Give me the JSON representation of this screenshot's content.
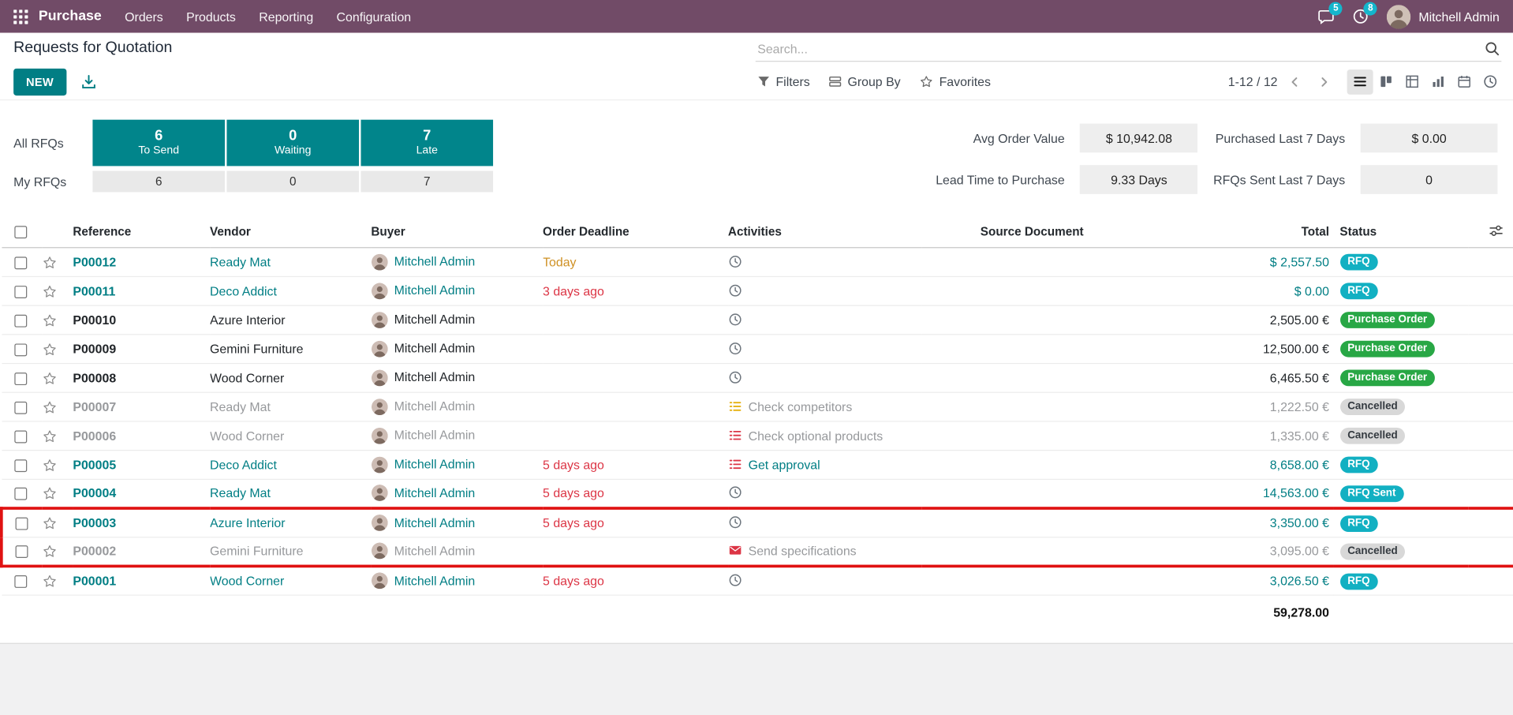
{
  "colors": {
    "brand": "#714B67",
    "accent": "#017E84",
    "tile": "#01858B",
    "badge_info": "#12b0c2",
    "badge_success": "#28a745",
    "cancel_bg": "#d8d8d8",
    "cancel_fg": "#343a40",
    "danger": "#dc3545",
    "warning": "#cf9124",
    "icon_warning": "#e5b00e",
    "nav_badge": "#14b6cc",
    "annotation": "#e01212",
    "muted": "#97999c"
  },
  "navbar": {
    "app_name": "Purchase",
    "menus": [
      "Orders",
      "Products",
      "Reporting",
      "Configuration"
    ],
    "messages_badge": "5",
    "activities_badge": "8",
    "user_name": "Mitchell Admin"
  },
  "control_panel": {
    "title": "Requests for Quotation",
    "search_placeholder": "Search...",
    "new_button": "NEW",
    "filters": "Filters",
    "group_by": "Group By",
    "favorites": "Favorites",
    "pager": "1-12 / 12",
    "view_switcher": {
      "active": "list",
      "views": [
        "list",
        "kanban",
        "pivot",
        "graph",
        "calendar",
        "activity"
      ]
    }
  },
  "dashboard": {
    "all_label": "All RFQs",
    "my_label": "My RFQs",
    "all_tiles": [
      {
        "value": "6",
        "label": "To Send"
      },
      {
        "value": "0",
        "label": "Waiting"
      },
      {
        "value": "7",
        "label": "Late"
      }
    ],
    "my_tiles": [
      "6",
      "0",
      "7"
    ],
    "stats": [
      {
        "label": "Avg Order Value",
        "value": "$ 10,942.08"
      },
      {
        "label": "Purchased Last 7 Days",
        "value": "$ 0.00"
      },
      {
        "label": "Lead Time to Purchase",
        "value": "9.33 Days"
      },
      {
        "label": "RFQs Sent Last 7 Days",
        "value": "0"
      }
    ]
  },
  "table": {
    "columns": [
      "Reference",
      "Vendor",
      "Buyer",
      "Order Deadline",
      "Activities",
      "Source Document",
      "Total",
      "Status"
    ],
    "footer_total": "59,278.00",
    "rows": [
      {
        "reference": "P00012",
        "vendor": "Ready Mat",
        "buyer": "Mitchell Admin",
        "deadline": "Today",
        "deadline_state": "warning",
        "activity": {
          "icon": "clock",
          "state": "default",
          "label": ""
        },
        "source_document": "",
        "total": "$ 2,557.50",
        "status": "RFQ",
        "status_variant": "info",
        "variant": "accent",
        "highlight": ""
      },
      {
        "reference": "P00011",
        "vendor": "Deco Addict",
        "buyer": "Mitchell Admin",
        "deadline": "3 days ago",
        "deadline_state": "danger",
        "activity": {
          "icon": "clock",
          "state": "default",
          "label": ""
        },
        "source_document": "",
        "total": "$ 0.00",
        "status": "RFQ",
        "status_variant": "info",
        "variant": "accent",
        "highlight": ""
      },
      {
        "reference": "P00010",
        "vendor": "Azure Interior",
        "buyer": "Mitchell Admin",
        "deadline": "",
        "deadline_state": "",
        "activity": {
          "icon": "clock",
          "state": "default",
          "label": ""
        },
        "source_document": "",
        "total": "2,505.00 €",
        "status": "Purchase Order",
        "status_variant": "success",
        "variant": "normal",
        "highlight": ""
      },
      {
        "reference": "P00009",
        "vendor": "Gemini Furniture",
        "buyer": "Mitchell Admin",
        "deadline": "",
        "deadline_state": "",
        "activity": {
          "icon": "clock",
          "state": "default",
          "label": ""
        },
        "source_document": "",
        "total": "12,500.00 €",
        "status": "Purchase Order",
        "status_variant": "success",
        "variant": "normal",
        "highlight": ""
      },
      {
        "reference": "P00008",
        "vendor": "Wood Corner",
        "buyer": "Mitchell Admin",
        "deadline": "",
        "deadline_state": "",
        "activity": {
          "icon": "clock",
          "state": "default",
          "label": ""
        },
        "source_document": "",
        "total": "6,465.50 €",
        "status": "Purchase Order",
        "status_variant": "success",
        "variant": "normal",
        "highlight": ""
      },
      {
        "reference": "P00007",
        "vendor": "Ready Mat",
        "buyer": "Mitchell Admin",
        "deadline": "",
        "deadline_state": "",
        "activity": {
          "icon": "list",
          "state": "warning",
          "label": "Check competitors"
        },
        "source_document": "",
        "total": "1,222.50 €",
        "status": "Cancelled",
        "status_variant": "muted",
        "variant": "muted",
        "highlight": ""
      },
      {
        "reference": "P00006",
        "vendor": "Wood Corner",
        "buyer": "Mitchell Admin",
        "deadline": "",
        "deadline_state": "",
        "activity": {
          "icon": "list",
          "state": "danger",
          "label": "Check optional products"
        },
        "source_document": "",
        "total": "1,335.00 €",
        "status": "Cancelled",
        "status_variant": "muted",
        "variant": "muted",
        "highlight": ""
      },
      {
        "reference": "P00005",
        "vendor": "Deco Addict",
        "buyer": "Mitchell Admin",
        "deadline": "5 days ago",
        "deadline_state": "danger",
        "activity": {
          "icon": "list",
          "state": "danger",
          "label": "Get approval"
        },
        "source_document": "",
        "total": "8,658.00 €",
        "status": "RFQ",
        "status_variant": "info",
        "variant": "accent",
        "highlight": ""
      },
      {
        "reference": "P00004",
        "vendor": "Ready Mat",
        "buyer": "Mitchell Admin",
        "deadline": "5 days ago",
        "deadline_state": "danger",
        "activity": {
          "icon": "clock",
          "state": "default",
          "label": ""
        },
        "source_document": "",
        "total": "14,563.00 €",
        "status": "RFQ Sent",
        "status_variant": "info",
        "variant": "accent",
        "highlight": ""
      },
      {
        "reference": "P00003",
        "vendor": "Azure Interior",
        "buyer": "Mitchell Admin",
        "deadline": "5 days ago",
        "deadline_state": "danger",
        "activity": {
          "icon": "clock",
          "state": "default",
          "label": ""
        },
        "source_document": "",
        "total": "3,350.00 €",
        "status": "RFQ",
        "status_variant": "info",
        "variant": "accent",
        "highlight": "start"
      },
      {
        "reference": "P00002",
        "vendor": "Gemini Furniture",
        "buyer": "Mitchell Admin",
        "deadline": "",
        "deadline_state": "",
        "activity": {
          "icon": "envelope",
          "state": "danger",
          "label": "Send specifications"
        },
        "source_document": "",
        "total": "3,095.00 €",
        "status": "Cancelled",
        "status_variant": "muted",
        "variant": "muted",
        "highlight": "end"
      },
      {
        "reference": "P00001",
        "vendor": "Wood Corner",
        "buyer": "Mitchell Admin",
        "deadline": "5 days ago",
        "deadline_state": "danger",
        "activity": {
          "icon": "clock",
          "state": "default",
          "label": ""
        },
        "source_document": "",
        "total": "3,026.50 €",
        "status": "RFQ",
        "status_variant": "info",
        "variant": "accent",
        "highlight": ""
      }
    ]
  },
  "annotation": {
    "type": "highlight-box",
    "highlighted_rows": [
      "P00003",
      "P00002"
    ]
  }
}
